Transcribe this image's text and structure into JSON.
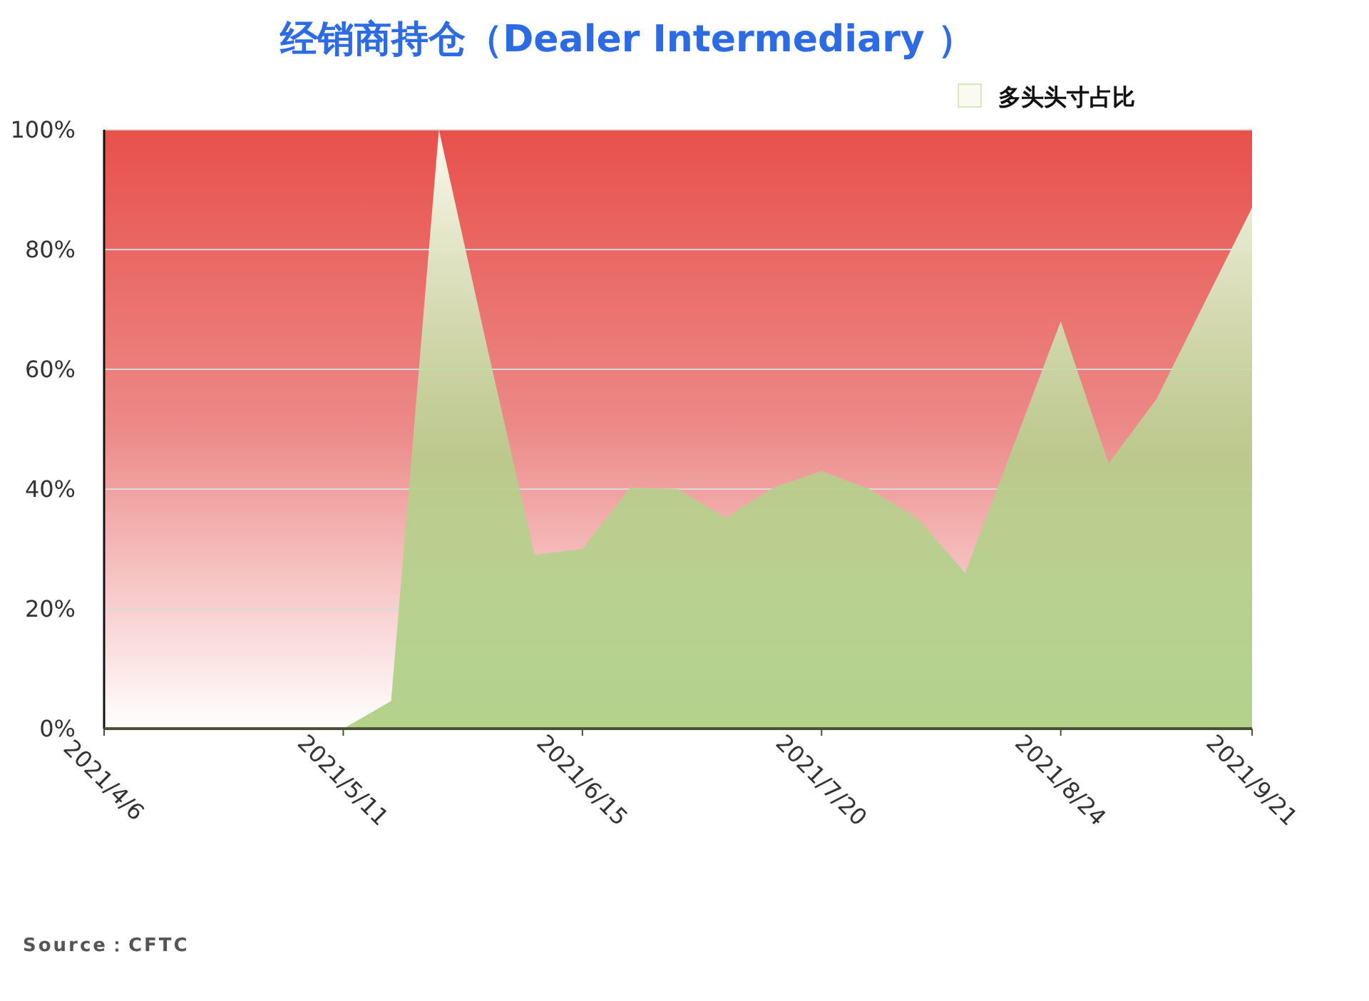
{
  "chart_data": {
    "type": "area",
    "title": "经销商持仓（Dealer Intermediary ）",
    "x": [
      "2021-04-06",
      "2021-04-13",
      "2021-04-20",
      "2021-04-27",
      "2021-05-04",
      "2021-05-11",
      "2021-05-18",
      "2021-05-25",
      "2021-06-01",
      "2021-06-08",
      "2021-06-15",
      "2021-06-22",
      "2021-06-29",
      "2021-07-06",
      "2021-07-13",
      "2021-07-20",
      "2021-07-27",
      "2021-08-03",
      "2021-08-10",
      "2021-08-17",
      "2021-08-24",
      "2021-08-31",
      "2021-09-07",
      "2021-09-14",
      "2021-09-21"
    ],
    "series": [
      {
        "name": "多头头寸占比",
        "color": "#b3d18b",
        "values": [
          0,
          0,
          0,
          0,
          0,
          0,
          4.6,
          100,
          64,
          29,
          30,
          40.3,
          40,
          35.2,
          40.3,
          43,
          40,
          35.2,
          26,
          47,
          68,
          44.3,
          55,
          71,
          87
        ]
      }
    ],
    "xlim": [
      "2021-04-06",
      "2021-09-21"
    ],
    "xticks": [
      {
        "value": "2021-04-06",
        "label": "2021/4/6"
      },
      {
        "value": "2021-05-11",
        "label": "2021/5/11"
      },
      {
        "value": "2021-06-15",
        "label": "2021/6/15"
      },
      {
        "value": "2021-07-20",
        "label": "2021/7/20"
      },
      {
        "value": "2021-08-24",
        "label": "2021/8/24"
      },
      {
        "value": "2021-09-21",
        "label": "2021/9/21"
      }
    ],
    "ylim": [
      0,
      100
    ],
    "yticks": [
      {
        "value": 0,
        "label": "0%"
      },
      {
        "value": 20,
        "label": "20%"
      },
      {
        "value": 40,
        "label": "40%"
      },
      {
        "value": 60,
        "label": "60%"
      },
      {
        "value": 80,
        "label": "80%"
      },
      {
        "value": 100,
        "label": "100%"
      }
    ],
    "grid": "y",
    "legend": "top right",
    "annotations": [
      "Source：CFTC"
    ]
  }
}
